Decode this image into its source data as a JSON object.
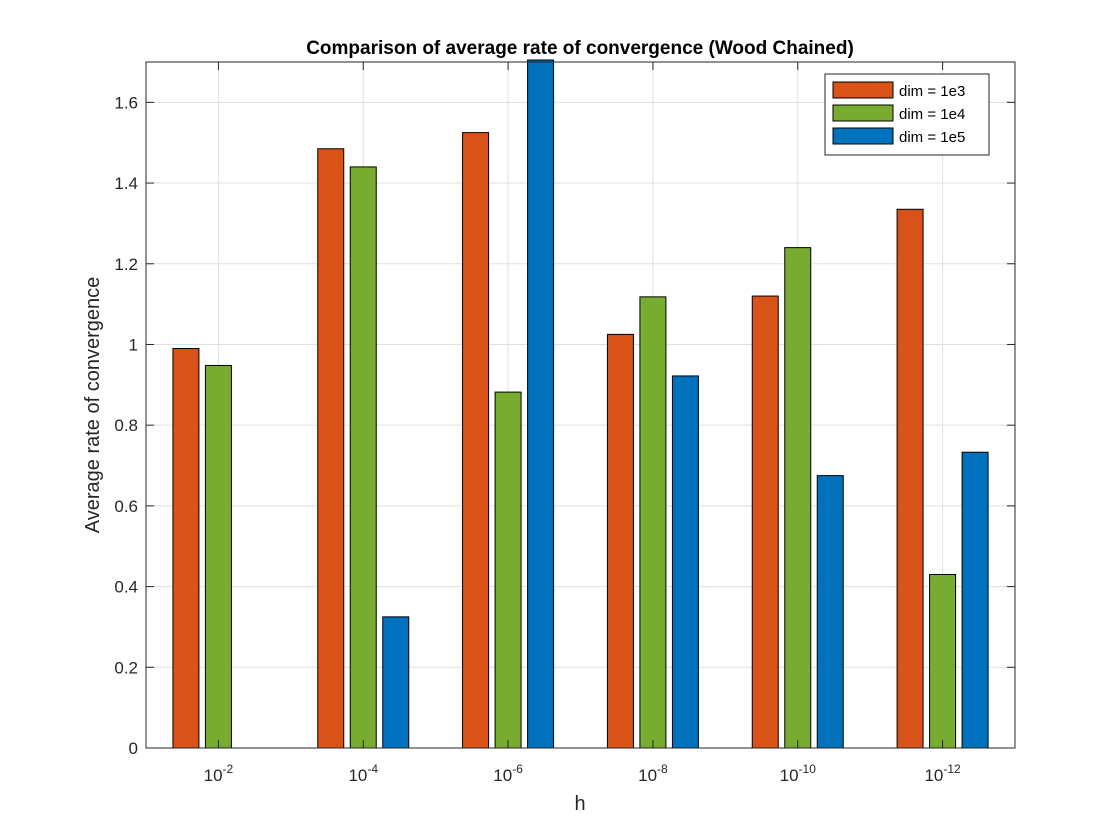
{
  "chart_data": {
    "type": "bar",
    "title": "Comparison of average rate of convergence (Wood Chained)",
    "xlabel": "h",
    "ylabel": "Average rate of convergence",
    "categories": [
      {
        "base": "10",
        "exp": "-2"
      },
      {
        "base": "10",
        "exp": "-4"
      },
      {
        "base": "10",
        "exp": "-6"
      },
      {
        "base": "10",
        "exp": "-8"
      },
      {
        "base": "10",
        "exp": "-10"
      },
      {
        "base": "10",
        "exp": "-12"
      }
    ],
    "series": [
      {
        "name": "dim = 1e3",
        "color": "#D95319",
        "values": [
          0.99,
          1.485,
          1.525,
          1.025,
          1.12,
          1.335
        ]
      },
      {
        "name": "dim = 1e4",
        "color": "#77AC30",
        "values": [
          0.948,
          1.44,
          0.882,
          1.118,
          1.24,
          0.43
        ]
      },
      {
        "name": "dim = 1e5",
        "color": "#0072BD",
        "values": [
          0,
          0.325,
          1.705,
          0.922,
          0.675,
          0.733
        ]
      }
    ],
    "ylim": [
      0,
      1.7
    ],
    "yticks": [
      "0",
      "0.2",
      "0.4",
      "0.6",
      "0.8",
      "1",
      "1.2",
      "1.4",
      "1.6"
    ],
    "grid": true,
    "legend_position": "top-right"
  }
}
